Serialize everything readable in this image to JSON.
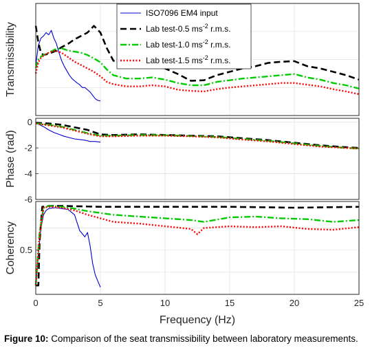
{
  "chart_data": [
    {
      "type": "line",
      "panel": "top",
      "ylabel": "Transmissibility",
      "xlim": [
        0,
        25
      ],
      "ylim": [
        0,
        2
      ],
      "yticks": [],
      "grid": true,
      "legend_placement": "top-center",
      "series": [
        {
          "name": "ISO7096 EM4 input",
          "color": "#0000cc",
          "style": "solid",
          "x": [
            0.0,
            0.2,
            0.4,
            0.6,
            0.8,
            1.0,
            1.2,
            1.4,
            1.6,
            1.8,
            2.0,
            2.2,
            2.4,
            2.6,
            2.8,
            3.0,
            3.2,
            3.4,
            3.6,
            3.8,
            4.0,
            4.2,
            4.4,
            4.6,
            4.8,
            5.0
          ],
          "y": [
            0.9,
            1.25,
            1.38,
            1.42,
            1.48,
            1.44,
            1.52,
            1.38,
            1.28,
            1.12,
            0.98,
            0.88,
            0.8,
            0.72,
            0.66,
            0.62,
            0.58,
            0.55,
            0.5,
            0.5,
            0.46,
            0.42,
            0.36,
            0.3,
            0.27,
            0.26
          ]
        },
        {
          "name": "Lab test-0.5 ms^-2 r.m.s.",
          "color": "#000000",
          "style": "dashed",
          "x": [
            0.0,
            0.2,
            0.4,
            0.6,
            1.0,
            1.5,
            2.0,
            2.5,
            3.0,
            3.5,
            4.0,
            4.5,
            5.0,
            5.5,
            6.0,
            7.0,
            8.0,
            9.0,
            10.0,
            11.0,
            12.0,
            13.0,
            14.0,
            15.0,
            16.0,
            17.0,
            18.0,
            19.0,
            20.0,
            21.0,
            22.0,
            23.0,
            24.0,
            25.0
          ],
          "y": [
            1.6,
            1.3,
            1.12,
            1.08,
            1.1,
            1.15,
            1.22,
            1.28,
            1.36,
            1.42,
            1.48,
            1.6,
            1.48,
            1.2,
            0.98,
            0.85,
            0.86,
            0.9,
            0.84,
            0.74,
            0.62,
            0.63,
            0.72,
            0.78,
            0.84,
            0.88,
            0.94,
            0.96,
            0.97,
            0.88,
            0.84,
            0.78,
            0.72,
            0.64
          ]
        },
        {
          "name": "Lab test-1.0 ms^-2 r.m.s.",
          "color": "#00cc00",
          "style": "dashdot",
          "x": [
            0.0,
            0.2,
            0.4,
            0.6,
            1.0,
            1.5,
            2.0,
            2.5,
            3.0,
            3.5,
            4.0,
            4.5,
            5.0,
            5.5,
            6.0,
            7.0,
            8.0,
            9.0,
            10.0,
            11.0,
            12.0,
            13.0,
            14.0,
            15.0,
            16.0,
            17.0,
            18.0,
            19.0,
            20.0,
            21.0,
            22.0,
            23.0,
            24.0,
            25.0
          ],
          "y": [
            0.85,
            1.0,
            1.05,
            1.08,
            1.12,
            1.18,
            1.2,
            1.16,
            1.14,
            1.12,
            1.08,
            1.02,
            0.95,
            0.82,
            0.72,
            0.66,
            0.66,
            0.68,
            0.64,
            0.58,
            0.54,
            0.54,
            0.6,
            0.63,
            0.66,
            0.68,
            0.7,
            0.72,
            0.74,
            0.68,
            0.64,
            0.58,
            0.54,
            0.48
          ]
        },
        {
          "name": "Lab test-1.5 ms^-2 r.m.s.",
          "color": "#ff0000",
          "style": "dotted",
          "x": [
            0.0,
            0.2,
            0.4,
            0.6,
            1.0,
            1.5,
            2.0,
            2.5,
            3.0,
            3.5,
            4.0,
            4.5,
            5.0,
            5.5,
            6.0,
            7.0,
            8.0,
            9.0,
            10.0,
            11.0,
            12.0,
            13.0,
            14.0,
            15.0,
            16.0,
            17.0,
            18.0,
            19.0,
            20.0,
            21.0,
            22.0,
            23.0,
            24.0,
            25.0
          ],
          "y": [
            0.75,
            0.95,
            1.03,
            1.07,
            1.12,
            1.16,
            1.12,
            1.04,
            0.96,
            0.9,
            0.84,
            0.78,
            0.7,
            0.6,
            0.56,
            0.52,
            0.52,
            0.54,
            0.52,
            0.46,
            0.44,
            0.43,
            0.47,
            0.5,
            0.52,
            0.54,
            0.56,
            0.58,
            0.58,
            0.55,
            0.52,
            0.47,
            0.43,
            0.38
          ]
        }
      ]
    },
    {
      "type": "line",
      "panel": "middle",
      "ylabel": "Phase (rad)",
      "xlim": [
        0,
        25
      ],
      "ylim": [
        -6,
        0.3
      ],
      "yticks": [
        "0",
        "-2",
        "-4",
        "-6"
      ],
      "grid": true,
      "series": [
        {
          "name": "ISO7096 EM4 input",
          "color": "#0000cc",
          "style": "solid",
          "x": [
            0.0,
            0.3,
            0.6,
            1.0,
            1.4,
            1.8,
            2.2,
            2.6,
            3.0,
            3.4,
            3.8,
            4.2,
            4.6,
            5.0
          ],
          "y": [
            -0.1,
            -0.2,
            -0.35,
            -0.6,
            -0.8,
            -0.95,
            -1.1,
            -1.2,
            -1.3,
            -1.35,
            -1.4,
            -1.5,
            -1.5,
            -1.55
          ]
        },
        {
          "name": "Lab test-0.5 ms^-2 r.m.s.",
          "color": "#000000",
          "style": "dashed",
          "x": [
            0.0,
            1.0,
            2.0,
            3.0,
            4.0,
            5.0,
            6.0,
            8.0,
            10.0,
            12.0,
            14.0,
            16.0,
            18.0,
            20.0,
            22.0,
            24.0,
            25.0
          ],
          "y": [
            -0.05,
            -0.1,
            -0.2,
            -0.4,
            -0.6,
            -0.95,
            -1.0,
            -0.95,
            -1.0,
            -1.05,
            -1.1,
            -1.25,
            -1.4,
            -1.6,
            -1.8,
            -1.95,
            -2.0
          ]
        },
        {
          "name": "Lab test-1.0 ms^-2 r.m.s.",
          "color": "#00cc00",
          "style": "dashdot",
          "x": [
            0.0,
            1.0,
            2.0,
            3.0,
            4.0,
            5.0,
            6.0,
            8.0,
            10.0,
            12.0,
            14.0,
            16.0,
            18.0,
            20.0,
            22.0,
            24.0,
            25.0
          ],
          "y": [
            -0.1,
            -0.2,
            -0.35,
            -0.6,
            -0.85,
            -1.05,
            -1.05,
            -1.0,
            -1.02,
            -1.08,
            -1.15,
            -1.3,
            -1.45,
            -1.65,
            -1.85,
            -2.0,
            -2.05
          ]
        },
        {
          "name": "Lab test-1.5 ms^-2 r.m.s.",
          "color": "#ff0000",
          "style": "dotted",
          "x": [
            0.0,
            1.0,
            2.0,
            3.0,
            4.0,
            5.0,
            6.0,
            8.0,
            10.0,
            12.0,
            14.0,
            16.0,
            18.0,
            20.0,
            22.0,
            24.0,
            25.0
          ],
          "y": [
            -0.1,
            -0.25,
            -0.4,
            -0.65,
            -0.9,
            -1.1,
            -1.1,
            -1.05,
            -1.05,
            -1.1,
            -1.18,
            -1.35,
            -1.5,
            -1.7,
            -1.9,
            -2.0,
            -2.05
          ]
        }
      ]
    },
    {
      "type": "line",
      "panel": "bottom",
      "ylabel": "Coherency",
      "xlabel": "Frequency (Hz)",
      "xlim": [
        0,
        25
      ],
      "ylim": [
        0,
        1.05
      ],
      "yticks": [
        "0.5"
      ],
      "xticks": [
        "0",
        "5",
        "10",
        "15",
        "20",
        "25"
      ],
      "grid": true,
      "series": [
        {
          "name": "ISO7096 EM4 input",
          "color": "#0000cc",
          "style": "solid",
          "x": [
            0.0,
            0.2,
            0.4,
            0.6,
            0.8,
            1.0,
            1.5,
            2.0,
            2.5,
            3.0,
            3.4,
            3.8,
            4.0,
            4.2,
            4.4,
            4.6,
            4.8,
            5.0
          ],
          "y": [
            0.1,
            0.45,
            0.75,
            0.9,
            0.95,
            0.97,
            0.98,
            0.97,
            0.96,
            0.9,
            0.72,
            0.65,
            0.7,
            0.55,
            0.35,
            0.22,
            0.15,
            0.08
          ]
        },
        {
          "name": "Lab test-0.5 ms^-2 r.m.s.",
          "color": "#000000",
          "style": "dashed",
          "x": [
            0.0,
            0.2,
            0.3,
            0.5,
            1.0,
            2.0,
            5.0,
            10.0,
            15.0,
            20.0,
            25.0
          ],
          "y": [
            0.1,
            0.1,
            0.6,
            0.99,
            1.0,
            1.0,
            0.99,
            0.99,
            0.99,
            0.98,
            0.99
          ]
        },
        {
          "name": "Lab test-1.0 ms^-2 r.m.s.",
          "color": "#00cc00",
          "style": "dashdot",
          "x": [
            0.0,
            0.3,
            0.6,
            1.0,
            2.0,
            3.0,
            4.0,
            5.0,
            6.0,
            8.0,
            10.0,
            12.0,
            13.0,
            15.0,
            17.0,
            19.0,
            21.0,
            23.0,
            25.0
          ],
          "y": [
            0.1,
            0.7,
            0.98,
            1.0,
            0.99,
            0.97,
            0.94,
            0.92,
            0.9,
            0.88,
            0.86,
            0.84,
            0.82,
            0.87,
            0.88,
            0.86,
            0.85,
            0.82,
            0.84
          ]
        },
        {
          "name": "Lab test-1.5 ms^-2 r.m.s.",
          "color": "#ff0000",
          "style": "dotted",
          "x": [
            0.0,
            0.3,
            0.6,
            1.0,
            2.0,
            3.0,
            4.0,
            5.0,
            6.0,
            8.0,
            10.0,
            12.0,
            12.5,
            13.0,
            15.0,
            17.0,
            19.0,
            21.0,
            23.0,
            25.0
          ],
          "y": [
            0.1,
            0.68,
            0.98,
            0.99,
            0.98,
            0.95,
            0.9,
            0.86,
            0.82,
            0.8,
            0.77,
            0.74,
            0.68,
            0.75,
            0.77,
            0.76,
            0.77,
            0.74,
            0.73,
            0.76
          ]
        }
      ]
    }
  ],
  "caption": {
    "label": "Figure 10:",
    "text": " Comparison of the seat transmissibility between laboratory measurements."
  }
}
